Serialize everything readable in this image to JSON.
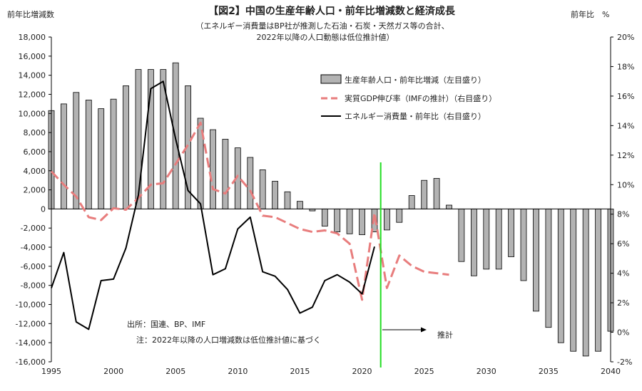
{
  "chart_data": {
    "type": "bar",
    "title": "【図2】中国の生産年齢人口・前年比増減数と経済成長",
    "subtitle_lines": [
      "（エネルギー消費量はBP社が推測した石油・石炭・天然ガス等の合計、",
      "2022年以降の人口動態は低位推計値）"
    ],
    "ylabel_left": "前年比増減数",
    "ylabel_right": "前年比　%",
    "left_axis": {
      "min": -16000,
      "max": 18000,
      "step": 2000,
      "ticks": [
        "-16,000",
        "-14,000",
        "-12,000",
        "-10,000",
        "-8,000",
        "-6,000",
        "-4,000",
        "-2,000",
        "0",
        "2,000",
        "4,000",
        "6,000",
        "8,000",
        "10,000",
        "12,000",
        "14,000",
        "16,000",
        "18,000"
      ]
    },
    "right_axis": {
      "min": -2,
      "max": 20,
      "step": 2,
      "ticks": [
        "-2%",
        "0%",
        "2%",
        "4%",
        "6%",
        "8%",
        "10%",
        "12%",
        "14%",
        "16%",
        "18%",
        "20%"
      ]
    },
    "x_axis": {
      "min": 1995,
      "max": 2040,
      "tick_labels": [
        "1995",
        "2000",
        "2005",
        "2010",
        "2015",
        "2020",
        "2025",
        "2030",
        "2035",
        "2040"
      ]
    },
    "legend": {
      "placement": "top-right",
      "entries": [
        {
          "label": "生産年齢人口・前年比増減（左目盛り）",
          "kind": "bar",
          "color": "#b3b3b3"
        },
        {
          "label": "実質GDP伸び率（IMFの推計）（右目盛り）",
          "kind": "dashed-line",
          "color": "#e87d7d"
        },
        {
          "label": "エネルギー消費量・前年比（右目盛り）",
          "kind": "line",
          "color": "#000000"
        }
      ]
    },
    "series": [
      {
        "name": "生産年齢人口・前年比増減（左目盛り）",
        "axis": "left",
        "color": "#b3b3b3",
        "x": [
          1995,
          1996,
          1997,
          1998,
          1999,
          2000,
          2001,
          2002,
          2003,
          2004,
          2005,
          2006,
          2007,
          2008,
          2009,
          2010,
          2011,
          2012,
          2013,
          2014,
          2015,
          2016,
          2017,
          2018,
          2019,
          2020,
          2021,
          2022,
          2023,
          2024,
          2025,
          2026,
          2027,
          2028,
          2029,
          2030,
          2031,
          2032,
          2033,
          2034,
          2035,
          2036,
          2037,
          2038,
          2039,
          2040
        ],
        "values": [
          10300,
          11000,
          12200,
          11400,
          10500,
          11500,
          12900,
          14600,
          14600,
          14600,
          15300,
          12900,
          9500,
          8300,
          7300,
          6400,
          5400,
          4100,
          2900,
          1800,
          800,
          -200,
          -1800,
          -2400,
          -2600,
          -2700,
          -2400,
          -2200,
          -1400,
          1400,
          3000,
          3200,
          400,
          -5500,
          -7000,
          -6300,
          -6300,
          -5000,
          -7500,
          -10700,
          -12400,
          -14000,
          -14900,
          -15400,
          -14900,
          -12800
        ]
      },
      {
        "name": "実質GDP伸び率（IMFの推計）（右目盛り）",
        "axis": "right",
        "color": "#e87d7d",
        "x": [
          1995,
          1996,
          1997,
          1998,
          1999,
          2000,
          2001,
          2002,
          2003,
          2004,
          2005,
          2006,
          2007,
          2008,
          2009,
          2010,
          2011,
          2012,
          2013,
          2014,
          2015,
          2016,
          2017,
          2018,
          2019,
          2020,
          2021,
          2022,
          2023,
          2024,
          2025,
          2026,
          2027
        ],
        "values": [
          10.9,
          10.0,
          9.2,
          7.8,
          7.6,
          8.4,
          8.3,
          9.1,
          10.0,
          10.1,
          11.4,
          12.7,
          14.2,
          9.7,
          9.4,
          10.6,
          9.6,
          7.9,
          7.8,
          7.4,
          7.0,
          6.8,
          6.9,
          6.7,
          6.0,
          2.2,
          8.1,
          3.0,
          5.2,
          4.5,
          4.1,
          4.0,
          3.9
        ]
      },
      {
        "name": "エネルギー消費量・前年比（右目盛り）",
        "axis": "right",
        "color": "#000000",
        "x": [
          1995,
          1996,
          1997,
          1998,
          1999,
          2000,
          2001,
          2002,
          2003,
          2004,
          2005,
          2006,
          2007,
          2008,
          2009,
          2010,
          2011,
          2012,
          2013,
          2014,
          2015,
          2016,
          2017,
          2018,
          2019,
          2020,
          2021
        ],
        "values": [
          3.0,
          5.4,
          0.7,
          0.2,
          3.5,
          3.6,
          5.7,
          9.3,
          16.5,
          17.0,
          13.1,
          9.6,
          8.7,
          3.9,
          4.3,
          7.0,
          7.8,
          4.1,
          3.8,
          2.9,
          1.3,
          1.7,
          3.5,
          3.9,
          3.4,
          2.6,
          5.8
        ]
      }
    ],
    "forecast_divider": {
      "x": 2021.5,
      "color": "#22dd22",
      "label": "推計"
    },
    "notes": [
      "出所：国連、BP、IMF",
      "注：2022年以降の人口増減数は低位推計値に基づく"
    ],
    "grid": false
  }
}
